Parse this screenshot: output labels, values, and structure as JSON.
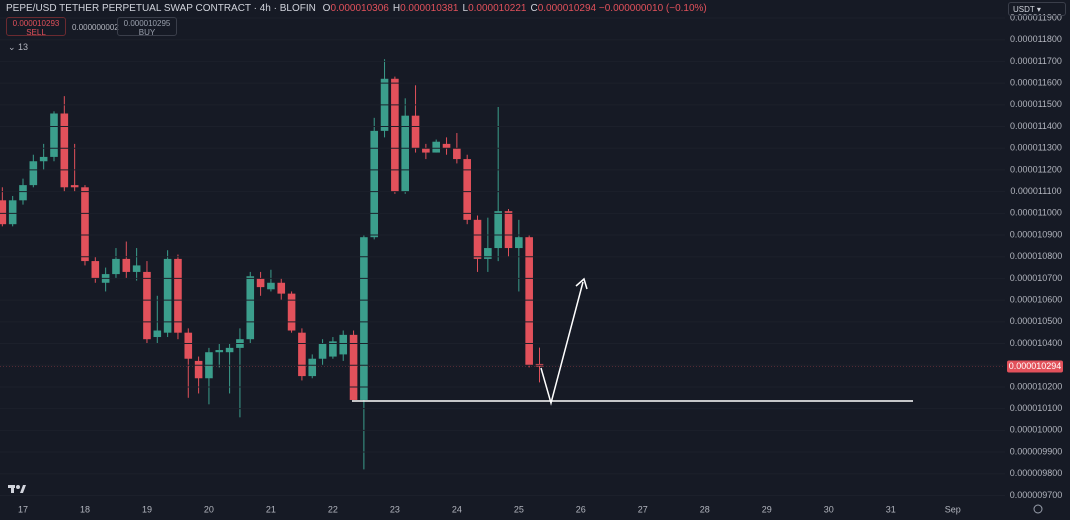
{
  "header": {
    "symbol": "PEPE/USD TETHER PERPETUAL SWAP CONTRACT · 4h · BLOFIN",
    "ohlc": [
      {
        "key": "O",
        "value": "0.000010306"
      },
      {
        "key": "H",
        "value": "0.000010381"
      },
      {
        "key": "L",
        "value": "0.000010221"
      },
      {
        "key": "C",
        "value": "0.000010294"
      }
    ],
    "change": "−0.000000010 (−0.10%)",
    "sell_price": "0.000010293",
    "sell_label": "SELL",
    "spread": "0.000000002",
    "buy_price": "0.000010295",
    "buy_label": "BUY",
    "indicators": "13",
    "currency": "USDT"
  },
  "chart_data": {
    "type": "candlestick",
    "up_color": "#3b9e8c",
    "down_color": "#e2515b",
    "open": [
      1.106e-05,
      1.095e-05,
      1.106e-05,
      1.113e-05,
      1.124e-05,
      1.126e-05,
      1.146e-05,
      1.113e-05,
      1.112e-05,
      1.078e-05,
      1.068e-05,
      1.072e-05,
      1.079e-05,
      1.073e-05,
      1.073e-05,
      1.043e-05,
      1.045e-05,
      1.079e-05,
      1.045e-05,
      1.032e-05,
      1.024e-05,
      1.036e-05,
      1.036e-05,
      1.038e-05,
      1.042e-05,
      1.07e-05,
      1.065e-05,
      1.068e-05,
      1.063e-05,
      1.045e-05,
      1.025e-05,
      1.033e-05,
      1.034e-05,
      1.035e-05,
      1.044e-05,
      1.014e-05,
      1.089e-05,
      1.138e-05,
      1.162e-05,
      1.11e-05,
      1.145e-05,
      1.13e-05,
      1.128e-05,
      1.132e-05,
      1.13e-05,
      1.125e-05,
      1.097e-05,
      1.079e-05,
      1.084e-05,
      1.101e-05,
      1.084e-05,
      1.089e-05,
      1.0306e-05
    ],
    "high": [
      1.112e-05,
      1.108e-05,
      1.116e-05,
      1.127e-05,
      1.132e-05,
      1.147e-05,
      1.154e-05,
      1.132e-05,
      1.113e-05,
      1.08e-05,
      1.075e-05,
      1.084e-05,
      1.087e-05,
      1.084e-05,
      1.078e-05,
      1.062e-05,
      1.083e-05,
      1.081e-05,
      1.047e-05,
      1.034e-05,
      1.038e-05,
      1.04e-05,
      1.04e-05,
      1.047e-05,
      1.073e-05,
      1.073e-05,
      1.074e-05,
      1.07e-05,
      1.064e-05,
      1.047e-05,
      1.035e-05,
      1.042e-05,
      1.043e-05,
      1.046e-05,
      1.046e-05,
      1.09e-05,
      1.144e-05,
      1.171e-05,
      1.163e-05,
      1.153e-05,
      1.159e-05,
      1.132e-05,
      1.134e-05,
      1.135e-05,
      1.137e-05,
      1.127e-05,
      1.099e-05,
      1.098e-05,
      1.149e-05,
      1.102e-05,
      1.097e-05,
      1.09e-05,
      1.0381e-05
    ],
    "low": [
      1.094e-05,
      1.094e-05,
      1.104e-05,
      1.112e-05,
      1.12e-05,
      1.124e-05,
      1.11e-05,
      1.11e-05,
      1.076e-05,
      1.068e-05,
      1.064e-05,
      1.07e-05,
      1.07e-05,
      1.069e-05,
      1.04e-05,
      1.04e-05,
      1.043e-05,
      1.042e-05,
      1.015e-05,
      1.017e-05,
      1.012e-05,
      1.029e-05,
      1.017e-05,
      1.006e-05,
      1.04e-05,
      1.062e-05,
      1.064e-05,
      1.06e-05,
      1.045e-05,
      1.023e-05,
      1.024e-05,
      1.03e-05,
      1.033e-05,
      1.032e-05,
      1.014e-05,
      9.82e-06,
      1.088e-05,
      1.135e-05,
      1.109e-05,
      1.109e-05,
      1.128e-05,
      1.125e-05,
      1.128e-05,
      1.127e-05,
      1.123e-05,
      1.095e-05,
      1.073e-05,
      1.073e-05,
      1.078e-05,
      1.08e-05,
      1.064e-05,
      1.029e-05,
      1.0221e-05
    ],
    "close": [
      1.095e-05,
      1.106e-05,
      1.113e-05,
      1.124e-05,
      1.126e-05,
      1.146e-05,
      1.112e-05,
      1.112e-05,
      1.078e-05,
      1.07e-05,
      1.072e-05,
      1.079e-05,
      1.073e-05,
      1.076e-05,
      1.042e-05,
      1.046e-05,
      1.079e-05,
      1.045e-05,
      1.033e-05,
      1.024e-05,
      1.036e-05,
      1.037e-05,
      1.038e-05,
      1.042e-05,
      1.071e-05,
      1.066e-05,
      1.068e-05,
      1.063e-05,
      1.046e-05,
      1.025e-05,
      1.033e-05,
      1.04e-05,
      1.041e-05,
      1.044e-05,
      1.014e-05,
      1.089e-05,
      1.138e-05,
      1.162e-05,
      1.11e-05,
      1.145e-05,
      1.13e-05,
      1.128e-05,
      1.133e-05,
      1.13e-05,
      1.125e-05,
      1.097e-05,
      1.079e-05,
      1.084e-05,
      1.101e-05,
      1.084e-05,
      1.089e-05,
      1.03e-05,
      1.0294e-05
    ],
    "last_price": {
      "value": 1.0294e-05,
      "label": "0.000010294"
    },
    "x_labels": [
      "17",
      "18",
      "19",
      "20",
      "21",
      "22",
      "23",
      "24",
      "25",
      "26",
      "27",
      "28",
      "29",
      "30",
      "31",
      "Sep"
    ],
    "ylim": [
      9.656e-06,
      1.1983e-05
    ],
    "yticks": [
      {
        "value": 9.7e-06,
        "label": "0.000009700"
      },
      {
        "value": 9.8e-06,
        "label": "0.000009800"
      },
      {
        "value": 9.9e-06,
        "label": "0.000009900"
      },
      {
        "value": 1e-05,
        "label": "0.000010000"
      },
      {
        "value": 1.01e-05,
        "label": "0.000010100"
      },
      {
        "value": 1.02e-05,
        "label": "0.000010200"
      },
      {
        "value": 1.03e-05,
        "label": "0.000010300"
      },
      {
        "value": 1.04e-05,
        "label": "0.000010400"
      },
      {
        "value": 1.05e-05,
        "label": "0.000010500"
      },
      {
        "value": 1.06e-05,
        "label": "0.000010600"
      },
      {
        "value": 1.07e-05,
        "label": "0.000010700"
      },
      {
        "value": 1.08e-05,
        "label": "0.000010800"
      },
      {
        "value": 1.09e-05,
        "label": "0.000010900"
      },
      {
        "value": 1.1e-05,
        "label": "0.000011000"
      },
      {
        "value": 1.11e-05,
        "label": "0.000011100"
      },
      {
        "value": 1.12e-05,
        "label": "0.000011200"
      },
      {
        "value": 1.13e-05,
        "label": "0.000011300"
      },
      {
        "value": 1.14e-05,
        "label": "0.000011400"
      },
      {
        "value": 1.15e-05,
        "label": "0.000011500"
      },
      {
        "value": 1.16e-05,
        "label": "0.000011600"
      },
      {
        "value": 1.17e-05,
        "label": "0.000011700"
      },
      {
        "value": 1.18e-05,
        "label": "0.000011800"
      },
      {
        "value": 1.19e-05,
        "label": "0.000011900"
      }
    ],
    "grid": true
  }
}
